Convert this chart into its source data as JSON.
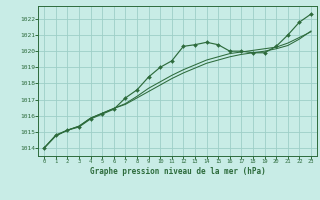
{
  "title": "Graphe pression niveau de la mer (hPa)",
  "background_color": "#c8ece6",
  "grid_color": "#9ecfc7",
  "line_color": "#2d6b3c",
  "marker_color": "#2d6b3c",
  "xlim": [
    -0.5,
    23.5
  ],
  "ylim": [
    1013.5,
    1022.8
  ],
  "xticks": [
    0,
    1,
    2,
    3,
    4,
    5,
    6,
    7,
    8,
    9,
    10,
    11,
    12,
    13,
    14,
    15,
    16,
    17,
    18,
    19,
    20,
    21,
    22,
    23
  ],
  "yticks": [
    1014,
    1015,
    1016,
    1017,
    1018,
    1019,
    1020,
    1021,
    1022
  ],
  "ytick_labels": [
    "1014",
    "1015",
    "1016",
    "1017",
    "1018",
    "1019",
    "1020",
    "1021",
    "1022"
  ],
  "series1": {
    "x": [
      0,
      1,
      2,
      3,
      4,
      5,
      6,
      7,
      8,
      9,
      10,
      11,
      12,
      13,
      14,
      15,
      16,
      17,
      18,
      19,
      20,
      21,
      22,
      23
    ],
    "y": [
      1014.0,
      1014.8,
      1015.1,
      1015.3,
      1015.8,
      1016.1,
      1016.4,
      1017.1,
      1017.6,
      1018.4,
      1019.0,
      1019.4,
      1020.3,
      1020.4,
      1020.55,
      1020.4,
      1020.0,
      1020.0,
      1019.9,
      1019.9,
      1020.3,
      1021.0,
      1021.8,
      1022.3
    ]
  },
  "series2": {
    "x": [
      0,
      1,
      2,
      3,
      4,
      5,
      6,
      7,
      8,
      9,
      10,
      11,
      12,
      13,
      14,
      15,
      16,
      17,
      18,
      19,
      20,
      21,
      22,
      23
    ],
    "y": [
      1014.0,
      1014.75,
      1015.1,
      1015.35,
      1015.85,
      1016.15,
      1016.45,
      1016.75,
      1017.2,
      1017.7,
      1018.1,
      1018.5,
      1018.85,
      1019.15,
      1019.45,
      1019.65,
      1019.85,
      1019.95,
      1020.05,
      1020.15,
      1020.25,
      1020.5,
      1020.85,
      1021.2
    ]
  },
  "series3": {
    "x": [
      0,
      1,
      2,
      3,
      4,
      5,
      6,
      7,
      8,
      9,
      10,
      11,
      12,
      13,
      14,
      15,
      16,
      17,
      18,
      19,
      20,
      21,
      22,
      23
    ],
    "y": [
      1014.0,
      1014.75,
      1015.1,
      1015.35,
      1015.85,
      1016.15,
      1016.45,
      1016.7,
      1017.1,
      1017.5,
      1017.9,
      1018.3,
      1018.65,
      1018.95,
      1019.25,
      1019.45,
      1019.65,
      1019.8,
      1019.9,
      1020.0,
      1020.15,
      1020.35,
      1020.75,
      1021.25
    ]
  },
  "figsize": [
    3.2,
    2.0
  ],
  "dpi": 100
}
